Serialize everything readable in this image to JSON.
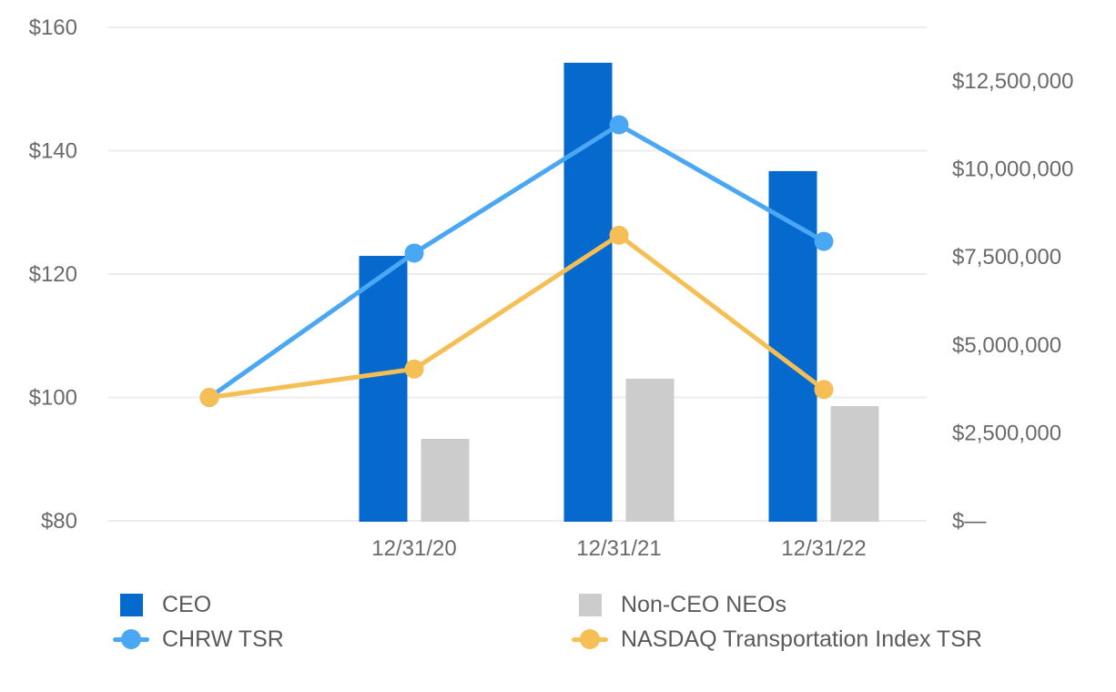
{
  "chart_data": {
    "type": "combo_bar_line",
    "title": "",
    "categories": [
      "12/31/20",
      "12/31/21",
      "12/31/22"
    ],
    "baseline_point": {
      "label": "",
      "tsr_value": 100
    },
    "bar_series": [
      {
        "name": "CEO",
        "axis": "right",
        "color": "#0669ce",
        "values": [
          7530000,
          13020000,
          9940000
        ]
      },
      {
        "name": "Non-CEO NEOs",
        "axis": "right",
        "color": "#cccccc",
        "values": [
          2330000,
          4040000,
          3260000
        ]
      }
    ],
    "line_series": [
      {
        "name": "CHRW TSR",
        "axis": "left",
        "color": "#4aa7f4",
        "values": [
          100,
          123.4,
          144.2,
          125.3
        ]
      },
      {
        "name": "NASDAQ Transportation Index TSR",
        "axis": "left",
        "color": "#f5bf55",
        "values": [
          100,
          104.6,
          126.3,
          101.3
        ]
      }
    ],
    "left_axis": {
      "min": 80,
      "max": 160,
      "ticks": [
        {
          "label": "$160",
          "value": 160
        },
        {
          "label": "$140",
          "value": 140
        },
        {
          "label": "$120",
          "value": 120
        },
        {
          "label": "$100",
          "value": 100
        },
        {
          "label": "$80",
          "value": 80
        }
      ]
    },
    "right_axis": {
      "step": 2500000,
      "ticks": [
        {
          "label": "$12,500,000",
          "value": 12500000
        },
        {
          "label": "$10,000,000",
          "value": 10000000
        },
        {
          "label": "$7,500,000",
          "value": 7500000
        },
        {
          "label": "$5,000,000",
          "value": 5000000
        },
        {
          "label": "$2,500,000",
          "value": 2500000
        },
        {
          "label": "$—",
          "value": 0
        }
      ]
    },
    "grid": true,
    "grid_color": "#ececec",
    "tick_color": "#6a6a6a",
    "legend_position": "bottom"
  },
  "legend": {
    "items": [
      {
        "label": "CEO",
        "swatch": "square",
        "color": "#0669ce"
      },
      {
        "label": "Non-CEO NEOs",
        "swatch": "square",
        "color": "#cccccc"
      },
      {
        "label": "CHRW TSR",
        "swatch": "line_marker",
        "color": "#4aa7f4"
      },
      {
        "label": "NASDAQ Transportation Index TSR",
        "swatch": "line_marker",
        "color": "#f5bf55"
      }
    ]
  }
}
